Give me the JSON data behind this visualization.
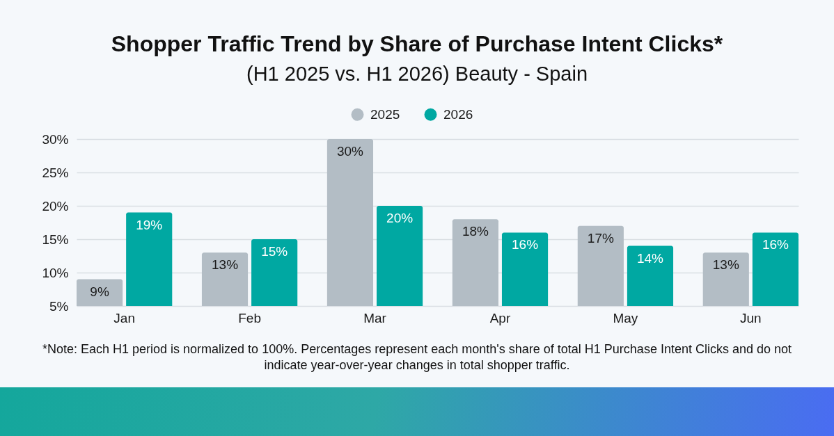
{
  "chart_data": {
    "type": "bar",
    "title": "Shopper Traffic Trend by Share of Purchase Intent Clicks*",
    "subtitle": "(H1 2025 vs. H1 2026) Beauty - Spain",
    "categories": [
      "Jan",
      "Feb",
      "Mar",
      "Apr",
      "May",
      "Jun"
    ],
    "series": [
      {
        "name": "2025",
        "color": "#b3bdc5",
        "values": [
          9,
          13,
          30,
          18,
          17,
          13
        ],
        "value_labels": [
          "9%",
          "13%",
          "30%",
          "18%",
          "17%",
          "13%"
        ]
      },
      {
        "name": "2026",
        "color": "#00a8a2",
        "values": [
          19,
          15,
          20,
          16,
          14,
          16
        ],
        "value_labels": [
          "19%",
          "15%",
          "20%",
          "16%",
          "14%",
          "16%"
        ]
      }
    ],
    "ylim": [
      5,
      30
    ],
    "yticks": [
      {
        "value": 5,
        "label": "5%"
      },
      {
        "value": 10,
        "label": "10%"
      },
      {
        "value": 15,
        "label": "15%"
      },
      {
        "value": 20,
        "label": "20%"
      },
      {
        "value": 25,
        "label": "25%"
      },
      {
        "value": 30,
        "label": "30%"
      }
    ],
    "grid": "y",
    "legend": "top",
    "annotations": [
      "*Note: Each H1 period is normalized to 100%. Percentages represent each month's share of total H1 Purchase Intent Clicks and do not indicate year-over-year changes in total shopper traffic."
    ]
  }
}
